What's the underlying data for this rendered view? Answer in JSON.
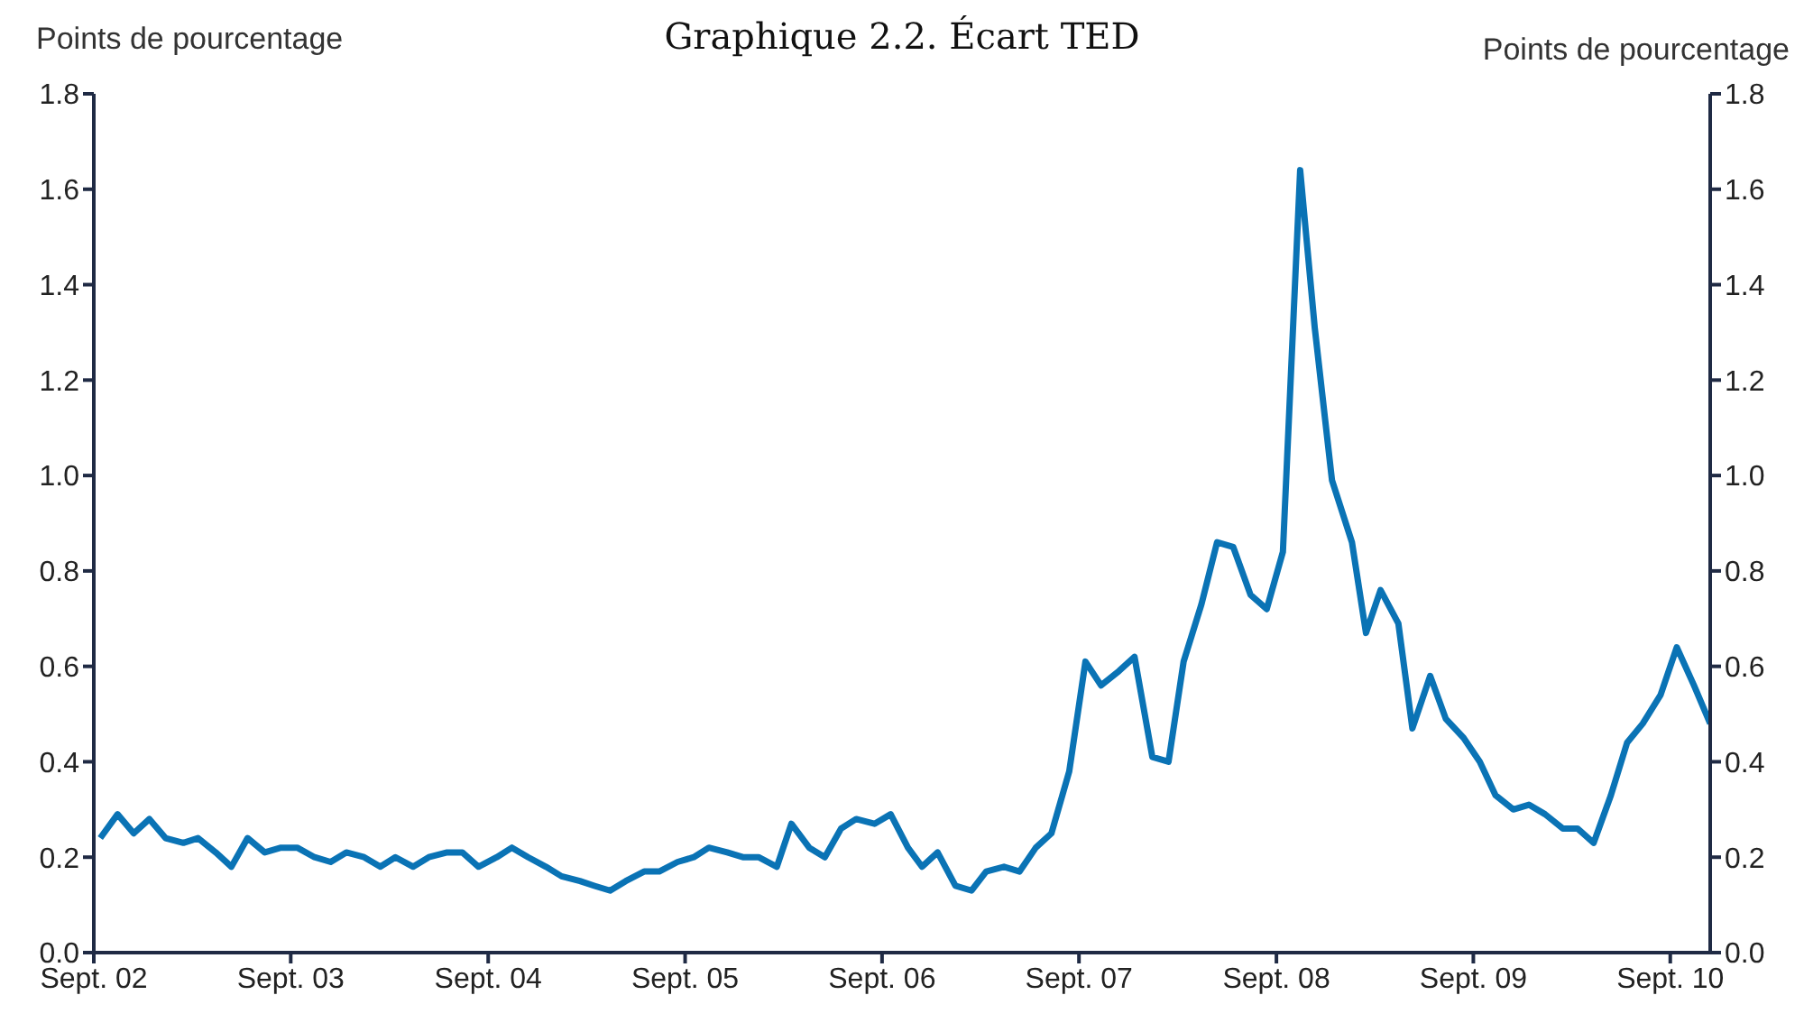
{
  "chart_data": {
    "type": "line",
    "title": "Graphique 2.2. Écart TED",
    "ylabel": "Points de pourcentage",
    "y2label": "Points de pourcentage",
    "x": [
      "2002-09-13",
      "2002-10-15",
      "2002-11-14",
      "2002-12-13",
      "2003-01-12",
      "2003-02-14",
      "2003-03-13",
      "2003-04-15",
      "2003-05-14",
      "2003-06-13",
      "2003-07-15",
      "2003-08-14",
      "2003-09-13",
      "2003-10-15",
      "2003-11-14",
      "2003-12-13",
      "2004-01-15",
      "2004-02-14",
      "2004-03-13",
      "2004-04-15",
      "2004-05-14",
      "2004-06-17",
      "2004-07-15",
      "2004-08-14",
      "2004-09-17",
      "2004-10-15",
      "2004-11-14",
      "2004-12-17",
      "2005-01-15",
      "2005-02-18",
      "2005-03-17",
      "2005-04-15",
      "2005-05-14",
      "2005-06-17",
      "2005-07-15",
      "2005-08-18",
      "2005-09-17",
      "2005-10-15",
      "2005-11-18",
      "2005-12-17",
      "2006-01-15",
      "2006-02-18",
      "2006-03-17",
      "2006-04-19",
      "2006-05-18",
      "2006-06-17",
      "2006-07-15",
      "2006-08-18",
      "2006-09-17",
      "2006-10-19",
      "2006-11-14",
      "2006-12-13",
      "2007-01-15",
      "2007-02-14",
      "2007-03-13",
      "2007-04-15",
      "2007-05-14",
      "2007-06-13",
      "2007-07-12",
      "2007-08-14",
      "2007-09-13",
      "2007-10-12",
      "2007-11-14",
      "2007-12-13",
      "2008-01-15",
      "2008-02-14",
      "2008-03-13",
      "2008-04-15",
      "2008-05-14",
      "2008-06-13",
      "2008-07-15",
      "2008-08-14",
      "2008-09-13",
      "2008-10-15",
      "2008-11-11",
      "2008-12-13",
      "2009-01-19",
      "2009-02-14",
      "2009-03-13",
      "2009-04-15",
      "2009-05-11",
      "2009-06-13",
      "2009-07-12",
      "2009-08-14",
      "2009-09-13",
      "2009-10-12",
      "2009-11-14",
      "2009-12-13",
      "2010-01-12",
      "2010-02-14",
      "2010-03-13",
      "2010-04-12",
      "2010-05-14",
      "2010-06-13",
      "2010-07-12",
      "2010-08-14",
      "2010-09-13",
      "2010-10-15",
      "2010-11-14"
    ],
    "series": [
      {
        "color": "#0a73b5",
        "values": [
          0.24,
          0.29,
          0.25,
          0.28,
          0.24,
          0.23,
          0.24,
          0.21,
          0.18,
          0.24,
          0.21,
          0.22,
          0.22,
          0.2,
          0.19,
          0.21,
          0.2,
          0.18,
          0.2,
          0.18,
          0.2,
          0.21,
          0.21,
          0.18,
          0.2,
          0.22,
          0.2,
          0.18,
          0.16,
          0.15,
          0.14,
          0.13,
          0.15,
          0.17,
          0.17,
          0.19,
          0.2,
          0.22,
          0.21,
          0.2,
          0.2,
          0.18,
          0.27,
          0.22,
          0.2,
          0.26,
          0.28,
          0.27,
          0.29,
          0.22,
          0.18,
          0.21,
          0.14,
          0.13,
          0.17,
          0.18,
          0.17,
          0.22,
          0.25,
          0.38,
          0.61,
          0.56,
          0.59,
          0.62,
          0.41,
          0.4,
          0.61,
          0.73,
          0.86,
          0.85,
          0.75,
          0.72,
          0.84,
          1.64,
          1.31,
          0.99,
          0.86,
          0.67,
          0.76,
          0.69,
          0.47,
          0.58,
          0.49,
          0.45,
          0.4,
          0.33,
          0.3,
          0.31,
          0.29,
          0.26,
          0.26,
          0.23,
          0.33,
          0.44,
          0.48,
          0.54,
          0.64,
          0.56,
          0.48
        ]
      }
    ],
    "xlim": [
      "2002-09-01",
      "2010-11-14"
    ],
    "xticks": [
      {
        "value": "2002-09-01",
        "label": "Sept. 02"
      },
      {
        "value": "2003-09-01",
        "label": "Sept. 03"
      },
      {
        "value": "2004-09-01",
        "label": "Sept. 04"
      },
      {
        "value": "2005-09-01",
        "label": "Sept. 05"
      },
      {
        "value": "2006-09-01",
        "label": "Sept. 06"
      },
      {
        "value": "2007-09-01",
        "label": "Sept. 07"
      },
      {
        "value": "2008-09-01",
        "label": "Sept. 08"
      },
      {
        "value": "2009-09-01",
        "label": "Sept. 09"
      },
      {
        "value": "2010-09-01",
        "label": "Sept. 10"
      }
    ],
    "ylim": [
      0,
      1.8
    ],
    "yticks": [
      {
        "value": 0,
        "label": "0.0"
      },
      {
        "value": 0.2,
        "label": "0.2"
      },
      {
        "value": 0.4,
        "label": "0.4"
      },
      {
        "value": 0.6,
        "label": "0.6"
      },
      {
        "value": 0.8,
        "label": "0.8"
      },
      {
        "value": 1.0,
        "label": "1.0"
      },
      {
        "value": 1.2,
        "label": "1.2"
      },
      {
        "value": 1.4,
        "label": "1.4"
      },
      {
        "value": 1.6,
        "label": "1.6"
      },
      {
        "value": 1.8,
        "label": "1.8"
      }
    ],
    "y2lim": [
      0,
      1.8
    ],
    "y2ticks": [
      {
        "value": 0,
        "label": "0.0"
      },
      {
        "value": 0.2,
        "label": "0.2"
      },
      {
        "value": 0.4,
        "label": "0.4"
      },
      {
        "value": 0.6,
        "label": "0.6"
      },
      {
        "value": 0.8,
        "label": "0.8"
      },
      {
        "value": 1.0,
        "label": "1.0"
      },
      {
        "value": 1.2,
        "label": "1.2"
      },
      {
        "value": 1.4,
        "label": "1.4"
      },
      {
        "value": 1.6,
        "label": "1.6"
      },
      {
        "value": 1.8,
        "label": "1.8"
      }
    ],
    "grid": false,
    "legend": false,
    "marker": "none",
    "line_style": "solid"
  }
}
